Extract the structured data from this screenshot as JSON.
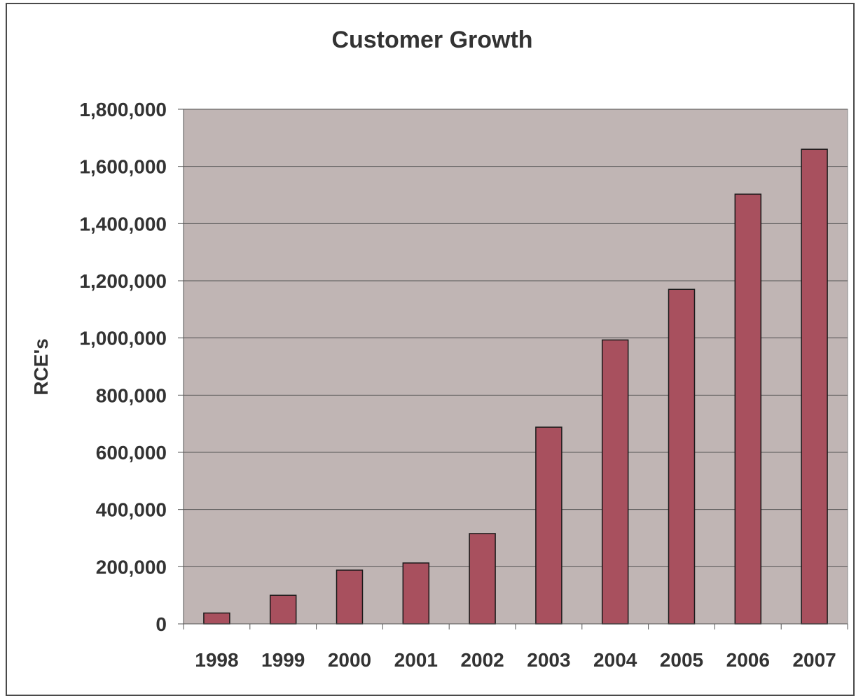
{
  "chart_data": {
    "type": "bar",
    "title": "Customer Growth",
    "xlabel": "",
    "ylabel": "RCE's",
    "categories": [
      "1998",
      "1999",
      "2000",
      "2001",
      "2002",
      "2003",
      "2004",
      "2005",
      "2006",
      "2007"
    ],
    "values": [
      38000,
      100000,
      188000,
      213000,
      316000,
      688000,
      993000,
      1170000,
      1503000,
      1660000
    ],
    "ylim": [
      0,
      1800000
    ],
    "yticks": [
      0,
      200000,
      400000,
      600000,
      800000,
      1000000,
      1200000,
      1400000,
      1600000,
      1800000
    ],
    "ytick_labels": [
      "0",
      "200,000",
      "400,000",
      "600,000",
      "800,000",
      "1,000,000",
      "1,200,000",
      "1,400,000",
      "1,600,000",
      "1,800,000"
    ],
    "grid": true,
    "legend": "none",
    "colors": {
      "bar": "#a8505e",
      "plot_bg": "#c0b5b4",
      "grid": "#555555",
      "text": "#333333"
    }
  }
}
